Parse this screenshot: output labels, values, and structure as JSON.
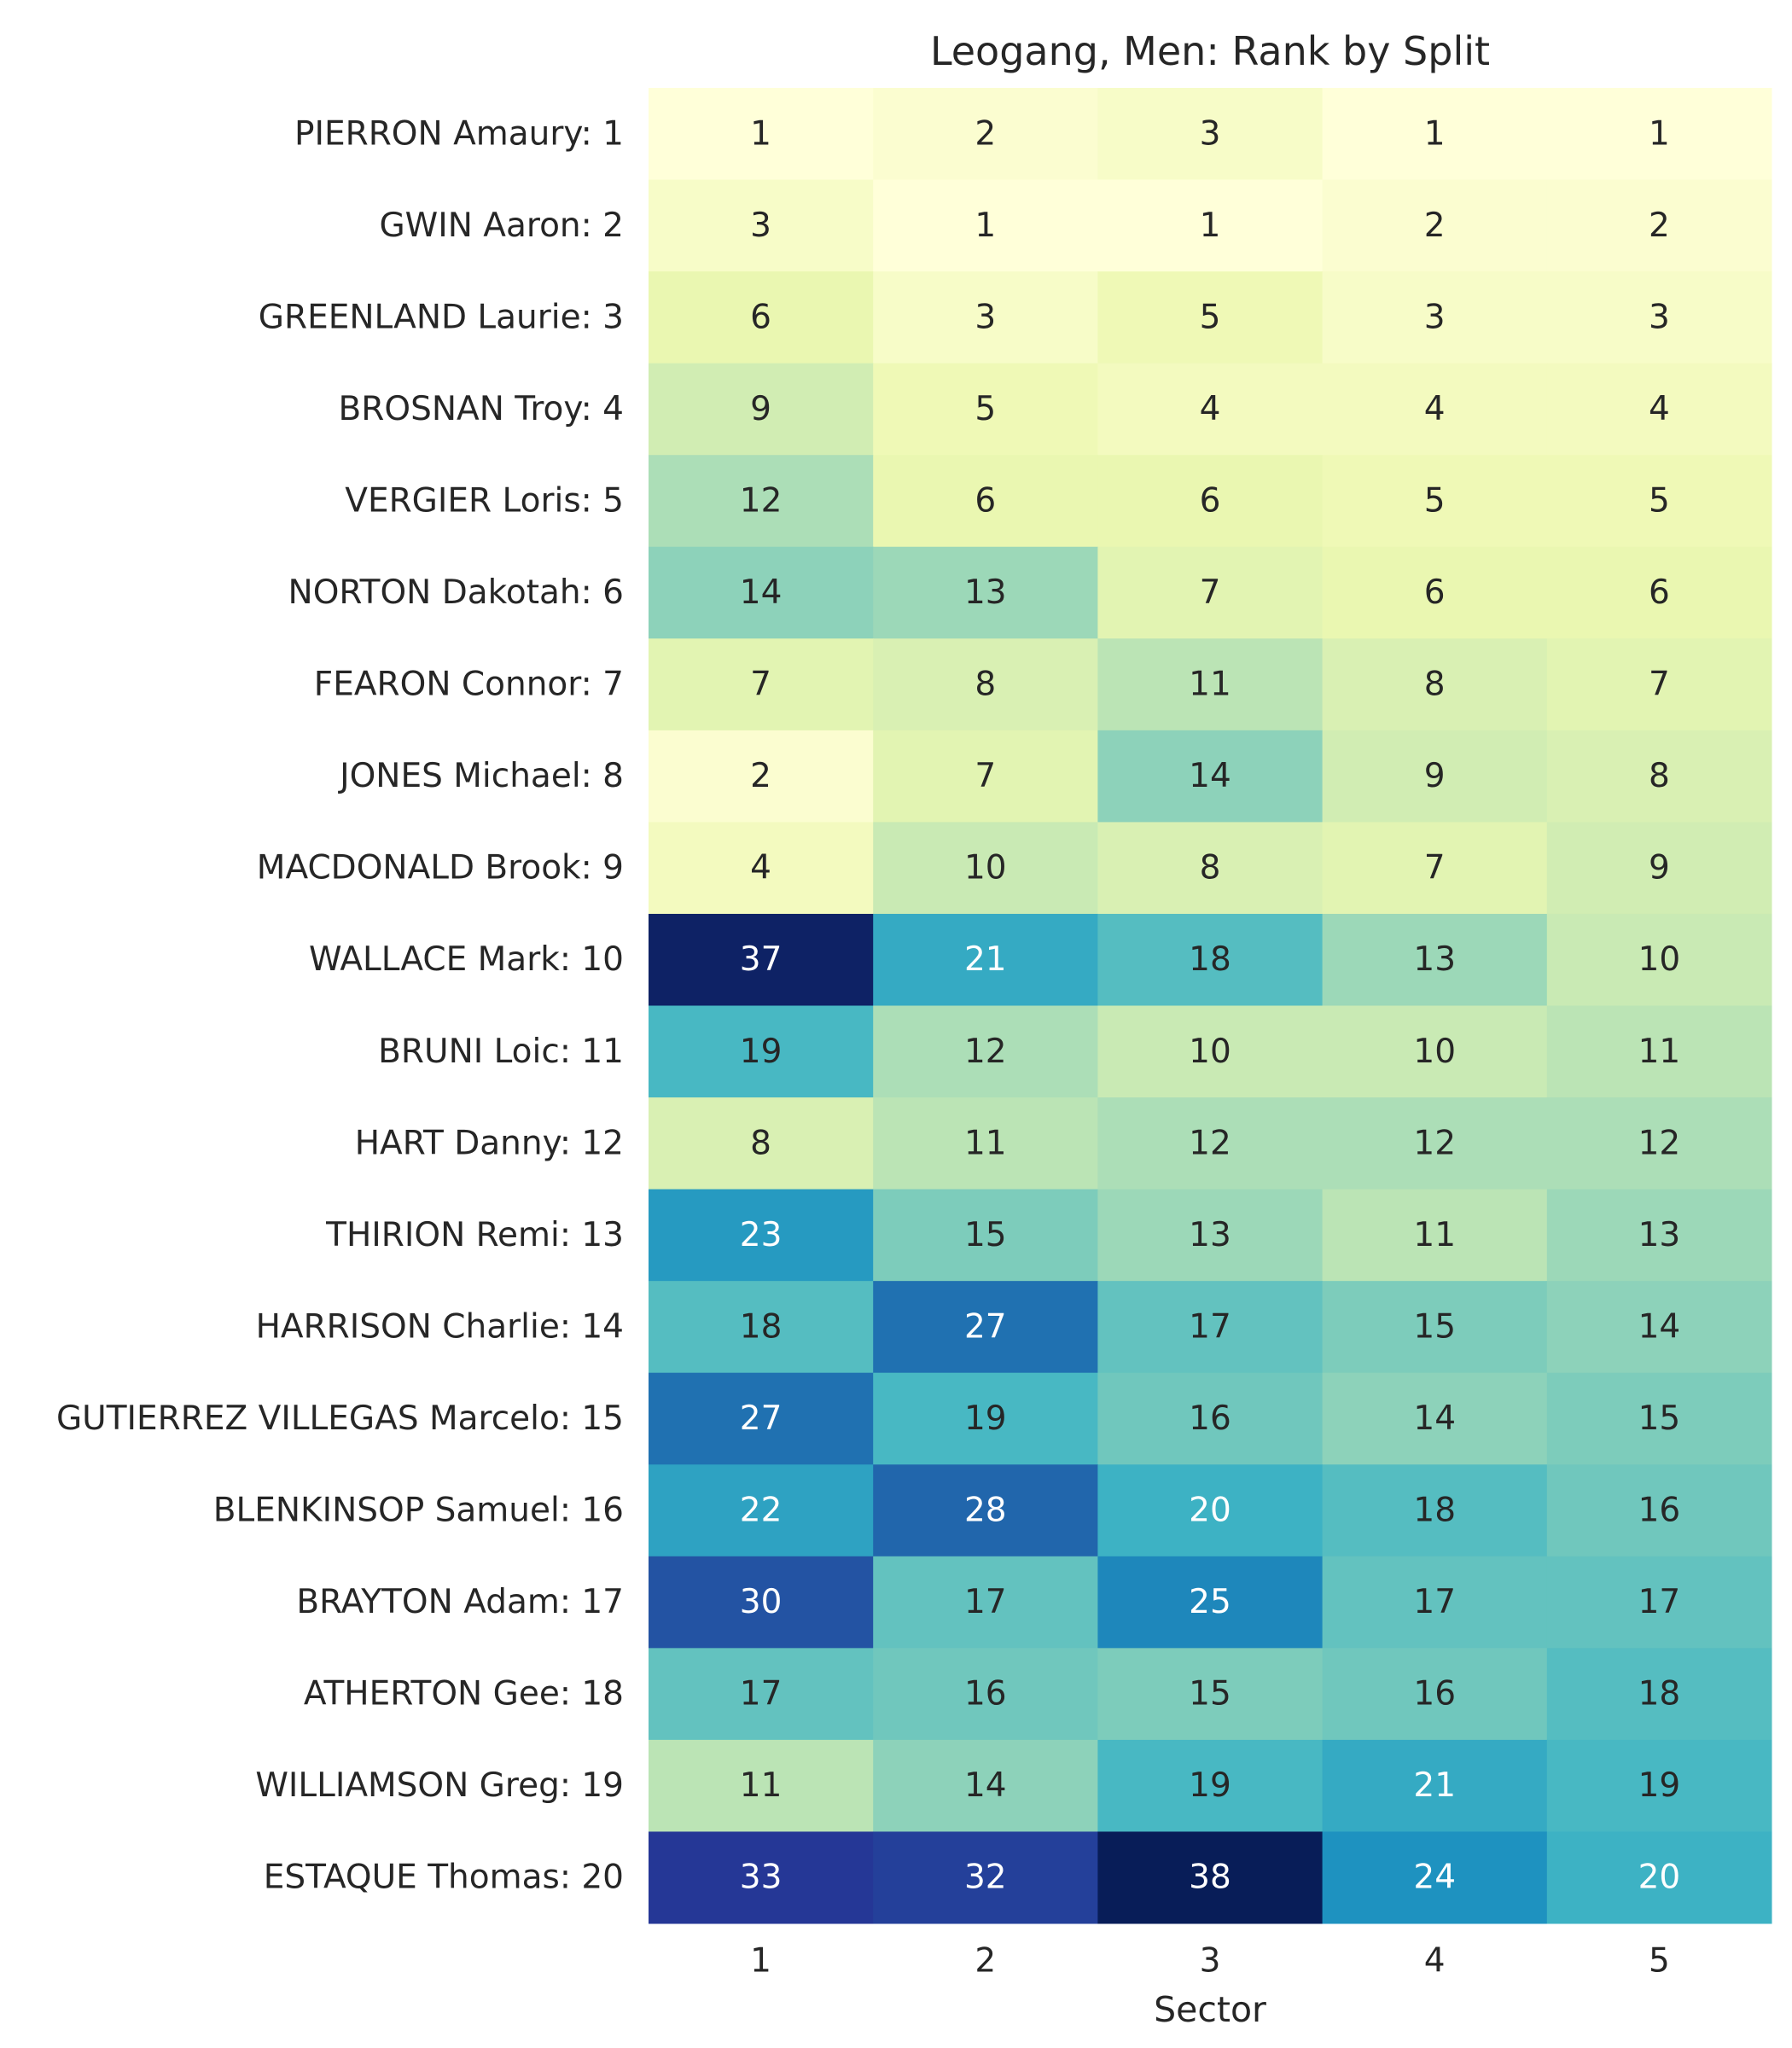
{
  "chart_data": {
    "type": "heatmap",
    "title": "Leogang, Men: Rank by Split",
    "xlabel": "Sector",
    "ylabel": "",
    "x": [
      "1",
      "2",
      "3",
      "4",
      "5"
    ],
    "y": [
      "PIERRON Amaury: 1",
      "GWIN Aaron: 2",
      "GREENLAND Laurie: 3",
      "BROSNAN Troy: 4",
      "VERGIER Loris: 5",
      "NORTON Dakotah: 6",
      "FEARON Connor: 7",
      "JONES Michael: 8",
      "MACDONALD Brook: 9",
      "WALLACE Mark: 10",
      "BRUNI Loic: 11",
      "HART Danny: 12",
      "THIRION Remi: 13",
      "HARRISON Charlie: 14",
      "GUTIERREZ VILLEGAS Marcelo: 15",
      "BLENKINSOP Samuel: 16",
      "BRAYTON Adam: 17",
      "ATHERTON Gee: 18",
      "WILLIAMSON Greg: 19",
      "ESTAQUE Thomas: 20"
    ],
    "values": [
      [
        1,
        2,
        3,
        1,
        1
      ],
      [
        3,
        1,
        1,
        2,
        2
      ],
      [
        6,
        3,
        5,
        3,
        3
      ],
      [
        9,
        5,
        4,
        4,
        4
      ],
      [
        12,
        6,
        6,
        5,
        5
      ],
      [
        14,
        13,
        7,
        6,
        6
      ],
      [
        7,
        8,
        11,
        8,
        7
      ],
      [
        2,
        7,
        14,
        9,
        8
      ],
      [
        4,
        10,
        8,
        7,
        9
      ],
      [
        37,
        21,
        18,
        13,
        10
      ],
      [
        19,
        12,
        10,
        10,
        11
      ],
      [
        8,
        11,
        12,
        12,
        12
      ],
      [
        23,
        15,
        13,
        11,
        13
      ],
      [
        18,
        27,
        17,
        15,
        14
      ],
      [
        27,
        19,
        16,
        14,
        15
      ],
      [
        22,
        28,
        20,
        18,
        16
      ],
      [
        30,
        17,
        25,
        17,
        17
      ],
      [
        17,
        16,
        15,
        16,
        18
      ],
      [
        11,
        14,
        19,
        21,
        19
      ],
      [
        33,
        32,
        38,
        24,
        20
      ]
    ],
    "value_range": [
      1,
      38
    ],
    "colormap": "YlGnBu",
    "colorbar": false,
    "grid": false
  }
}
